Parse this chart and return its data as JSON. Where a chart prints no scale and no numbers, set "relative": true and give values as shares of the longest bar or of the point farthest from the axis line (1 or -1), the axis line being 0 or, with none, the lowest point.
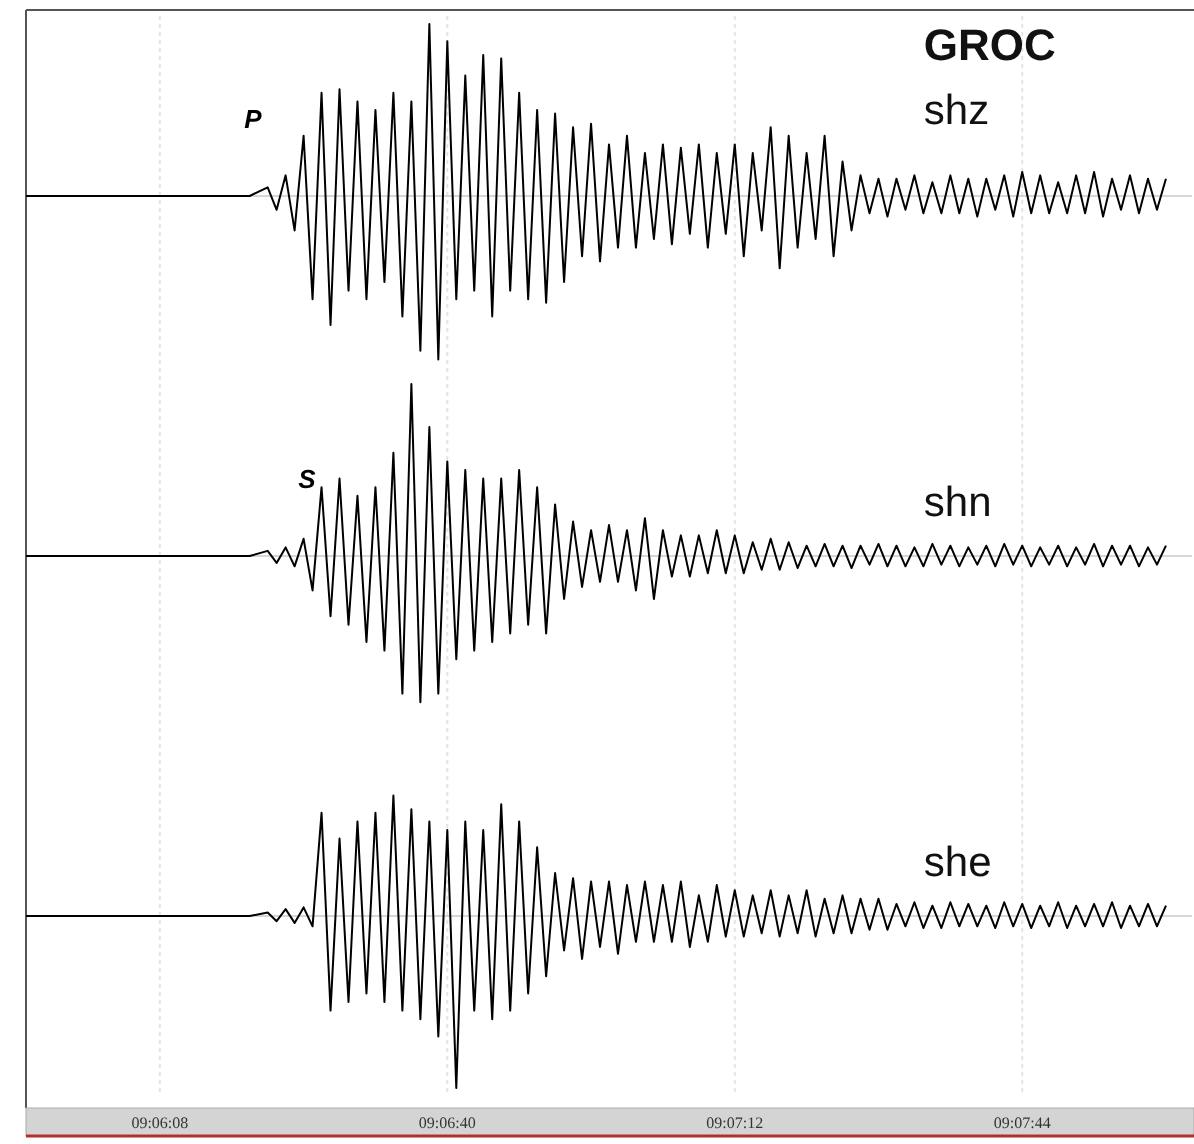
{
  "chart_data": [
    {
      "type": "line",
      "title": "GROC",
      "relative": true,
      "grid": "x",
      "tick_labels": false,
      "annotations": [
        {
          "text": "P",
          "x": 9.105556,
          "y": 0
        }
      ],
      "xlim": [
        9.098083,
        9.134139
      ],
      "xticks": [
        {
          "value": 9.102222,
          "label": null
        },
        {
          "value": 9.111111,
          "label": null
        },
        {
          "value": 9.12,
          "label": null
        },
        {
          "value": 9.128889,
          "label": null
        }
      ],
      "x": [
        9.098083,
        9.105,
        9.105556,
        9.105833,
        9.106111,
        9.106389,
        9.106667,
        9.106944,
        9.107222,
        9.1075,
        9.107778,
        9.108056,
        9.108333,
        9.108611,
        9.108889,
        9.109167,
        9.109444,
        9.109722,
        9.11,
        9.110278,
        9.110556,
        9.110833,
        9.111111,
        9.111389,
        9.111667,
        9.111944,
        9.112222,
        9.1125,
        9.112778,
        9.113056,
        9.113333,
        9.113611,
        9.113889,
        9.114167,
        9.114444,
        9.114722,
        9.115,
        9.115278,
        9.115556,
        9.115833,
        9.116111,
        9.116389,
        9.116667,
        9.116944,
        9.117222,
        9.1175,
        9.117778,
        9.118056,
        9.118333,
        9.118611,
        9.118889,
        9.119167,
        9.119444,
        9.119722,
        9.12,
        9.120278,
        9.120556,
        9.120833,
        9.121111,
        9.121389,
        9.121667,
        9.121944,
        9.122222,
        9.1225,
        9.122778,
        9.123056,
        9.123333,
        9.123611,
        9.123889,
        9.124167,
        9.124444,
        9.124722,
        9.125,
        9.125278,
        9.125556,
        9.125833,
        9.126111,
        9.126389,
        9.126667,
        9.126944,
        9.127222,
        9.1275,
        9.127778,
        9.128056,
        9.128333,
        9.128611,
        9.128889,
        9.129167,
        9.129444,
        9.129722,
        9.13,
        9.130278,
        9.130556,
        9.130833,
        9.131111,
        9.131389,
        9.131667,
        9.131944,
        9.132222,
        9.1325,
        9.132778,
        9.133056,
        9.133333
      ],
      "series": [
        {
          "name": "shz",
          "color": "#000000",
          "values": [
            0,
            0,
            0.05,
            -0.08,
            0.12,
            -0.2,
            0.35,
            -0.6,
            0.6,
            -0.75,
            0.62,
            -0.55,
            0.55,
            -0.6,
            0.5,
            -0.5,
            0.6,
            -0.7,
            0.55,
            -0.9,
            1.0,
            -0.95,
            0.9,
            -0.6,
            0.7,
            -0.55,
            0.82,
            -0.7,
            0.8,
            -0.55,
            0.6,
            -0.6,
            0.5,
            -0.62,
            0.48,
            -0.5,
            0.4,
            -0.35,
            0.42,
            -0.38,
            0.3,
            -0.3,
            0.35,
            -0.3,
            0.25,
            -0.25,
            0.3,
            -0.28,
            0.28,
            -0.22,
            0.3,
            -0.3,
            0.25,
            -0.22,
            0.3,
            -0.35,
            0.25,
            -0.2,
            0.4,
            -0.42,
            0.35,
            -0.3,
            0.25,
            -0.25,
            0.35,
            -0.35,
            0.2,
            -0.2,
            0.12,
            -0.1,
            0.1,
            -0.12,
            0.1,
            -0.08,
            0.12,
            -0.1,
            0.08,
            -0.1,
            0.12,
            -0.1,
            0.1,
            -0.12,
            0.1,
            -0.08,
            0.12,
            -0.12,
            0.14,
            -0.1,
            0.12,
            -0.1,
            0.08,
            -0.1,
            0.12,
            -0.1,
            0.14,
            -0.12,
            0.1,
            -0.08,
            0.12,
            -0.1,
            0.1,
            -0.08,
            0.1
          ]
        }
      ]
    },
    {
      "type": "line",
      "relative": true,
      "grid": "x",
      "tick_labels": false,
      "annotations": [
        {
          "text": "S",
          "x": 9.107222,
          "y": 0
        }
      ],
      "xlim": [
        9.098083,
        9.134139
      ],
      "xticks": [
        {
          "value": 9.102222,
          "label": null
        },
        {
          "value": 9.111111,
          "label": null
        },
        {
          "value": 9.12,
          "label": null
        },
        {
          "value": 9.128889,
          "label": null
        }
      ],
      "x": [
        9.098083,
        9.105,
        9.105556,
        9.105833,
        9.106111,
        9.106389,
        9.106667,
        9.106944,
        9.107222,
        9.1075,
        9.107778,
        9.108056,
        9.108333,
        9.108611,
        9.108889,
        9.109167,
        9.109444,
        9.109722,
        9.11,
        9.110278,
        9.110556,
        9.110833,
        9.111111,
        9.111389,
        9.111667,
        9.111944,
        9.112222,
        9.1125,
        9.112778,
        9.113056,
        9.113333,
        9.113611,
        9.113889,
        9.114167,
        9.114444,
        9.114722,
        9.115,
        9.115278,
        9.115556,
        9.115833,
        9.116111,
        9.116389,
        9.116667,
        9.116944,
        9.117222,
        9.1175,
        9.117778,
        9.118056,
        9.118333,
        9.118611,
        9.118889,
        9.119167,
        9.119444,
        9.119722,
        9.12,
        9.120278,
        9.120556,
        9.120833,
        9.121111,
        9.121389,
        9.121667,
        9.121944,
        9.122222,
        9.1225,
        9.122778,
        9.123056,
        9.123333,
        9.123611,
        9.123889,
        9.124167,
        9.124444,
        9.124722,
        9.125,
        9.125278,
        9.125556,
        9.125833,
        9.126111,
        9.126389,
        9.126667,
        9.126944,
        9.127222,
        9.1275,
        9.127778,
        9.128056,
        9.128333,
        9.128611,
        9.128889,
        9.129167,
        9.129444,
        9.129722,
        9.13,
        9.130278,
        9.130556,
        9.130833,
        9.131111,
        9.131389,
        9.131667,
        9.131944,
        9.132222,
        9.1325,
        9.132778,
        9.133056,
        9.133333
      ],
      "series": [
        {
          "name": "shn",
          "color": "#000000",
          "values": [
            0,
            0,
            0.03,
            -0.04,
            0.05,
            -0.06,
            0.1,
            -0.2,
            0.4,
            -0.35,
            0.45,
            -0.4,
            0.35,
            -0.5,
            0.4,
            -0.55,
            0.6,
            -0.8,
            1.0,
            -0.85,
            0.75,
            -0.8,
            0.55,
            -0.6,
            0.5,
            -0.55,
            0.45,
            -0.5,
            0.45,
            -0.45,
            0.5,
            -0.4,
            0.4,
            -0.45,
            0.3,
            -0.25,
            0.2,
            -0.18,
            0.15,
            -0.15,
            0.18,
            -0.15,
            0.15,
            -0.2,
            0.22,
            -0.25,
            0.15,
            -0.12,
            0.12,
            -0.12,
            0.12,
            -0.1,
            0.15,
            -0.1,
            0.12,
            -0.1,
            0.08,
            -0.08,
            0.1,
            -0.08,
            0.08,
            -0.07,
            0.06,
            -0.06,
            0.07,
            -0.06,
            0.06,
            -0.07,
            0.06,
            -0.05,
            0.07,
            -0.06,
            0.06,
            -0.06,
            0.05,
            -0.06,
            0.07,
            -0.05,
            0.06,
            -0.06,
            0.05,
            -0.05,
            0.06,
            -0.06,
            0.07,
            -0.05,
            0.06,
            -0.06,
            0.05,
            -0.05,
            0.06,
            -0.06,
            0.05,
            -0.05,
            0.07,
            -0.06,
            0.06,
            -0.05,
            0.06,
            -0.06,
            0.05,
            -0.05,
            0.06
          ]
        }
      ]
    },
    {
      "type": "line",
      "relative": true,
      "grid": "x",
      "tick_labels": "x",
      "xlim": [
        9.098083,
        9.134139
      ],
      "xticks": [
        {
          "value": 9.102222,
          "label": "09:06:08"
        },
        {
          "value": 9.111111,
          "label": "09:06:40"
        },
        {
          "value": 9.12,
          "label": "09:07:12"
        },
        {
          "value": 9.128889,
          "label": "09:07:44"
        }
      ],
      "x": [
        9.098083,
        9.105,
        9.105556,
        9.105833,
        9.106111,
        9.106389,
        9.106667,
        9.106944,
        9.107222,
        9.1075,
        9.107778,
        9.108056,
        9.108333,
        9.108611,
        9.108889,
        9.109167,
        9.109444,
        9.109722,
        9.11,
        9.110278,
        9.110556,
        9.110833,
        9.111111,
        9.111389,
        9.111667,
        9.111944,
        9.112222,
        9.1125,
        9.112778,
        9.113056,
        9.113333,
        9.113611,
        9.113889,
        9.114167,
        9.114444,
        9.114722,
        9.115,
        9.115278,
        9.115556,
        9.115833,
        9.116111,
        9.116389,
        9.116667,
        9.116944,
        9.117222,
        9.1175,
        9.117778,
        9.118056,
        9.118333,
        9.118611,
        9.118889,
        9.119167,
        9.119444,
        9.119722,
        9.12,
        9.120278,
        9.120556,
        9.120833,
        9.121111,
        9.121389,
        9.121667,
        9.121944,
        9.122222,
        9.1225,
        9.122778,
        9.123056,
        9.123333,
        9.123611,
        9.123889,
        9.124167,
        9.124444,
        9.124722,
        9.125,
        9.125278,
        9.125556,
        9.125833,
        9.126111,
        9.126389,
        9.126667,
        9.126944,
        9.127222,
        9.1275,
        9.127778,
        9.128056,
        9.128333,
        9.128611,
        9.128889,
        9.129167,
        9.129444,
        9.129722,
        9.13,
        9.130278,
        9.130556,
        9.130833,
        9.131111,
        9.131389,
        9.131667,
        9.131944,
        9.132222,
        9.1325,
        9.132778,
        9.133056,
        9.133333
      ],
      "series": [
        {
          "name": "she",
          "color": "#000000",
          "values": [
            0,
            0,
            0.02,
            -0.03,
            0.04,
            -0.04,
            0.05,
            -0.06,
            0.6,
            -0.55,
            0.45,
            -0.5,
            0.55,
            -0.45,
            0.6,
            -0.5,
            0.7,
            -0.55,
            0.62,
            -0.6,
            0.55,
            -0.7,
            0.5,
            -1.0,
            0.55,
            -0.55,
            0.5,
            -0.6,
            0.65,
            -0.55,
            0.55,
            -0.45,
            0.4,
            -0.35,
            0.25,
            -0.2,
            0.22,
            -0.25,
            0.2,
            -0.18,
            0.2,
            -0.22,
            0.18,
            -0.15,
            0.2,
            -0.15,
            0.18,
            -0.15,
            0.2,
            -0.18,
            0.12,
            -0.15,
            0.18,
            -0.12,
            0.15,
            -0.12,
            0.12,
            -0.1,
            0.15,
            -0.12,
            0.12,
            -0.1,
            0.15,
            -0.12,
            0.1,
            -0.1,
            0.12,
            -0.1,
            0.1,
            -0.08,
            0.1,
            -0.08,
            0.07,
            -0.06,
            0.08,
            -0.07,
            0.06,
            -0.07,
            0.08,
            -0.06,
            0.07,
            -0.06,
            0.06,
            -0.07,
            0.08,
            -0.06,
            0.07,
            -0.07,
            0.06,
            -0.06,
            0.08,
            -0.07,
            0.06,
            -0.06,
            0.07,
            -0.06,
            0.08,
            -0.07,
            0.06,
            -0.06,
            0.07,
            -0.06,
            0.06
          ]
        }
      ]
    }
  ]
}
